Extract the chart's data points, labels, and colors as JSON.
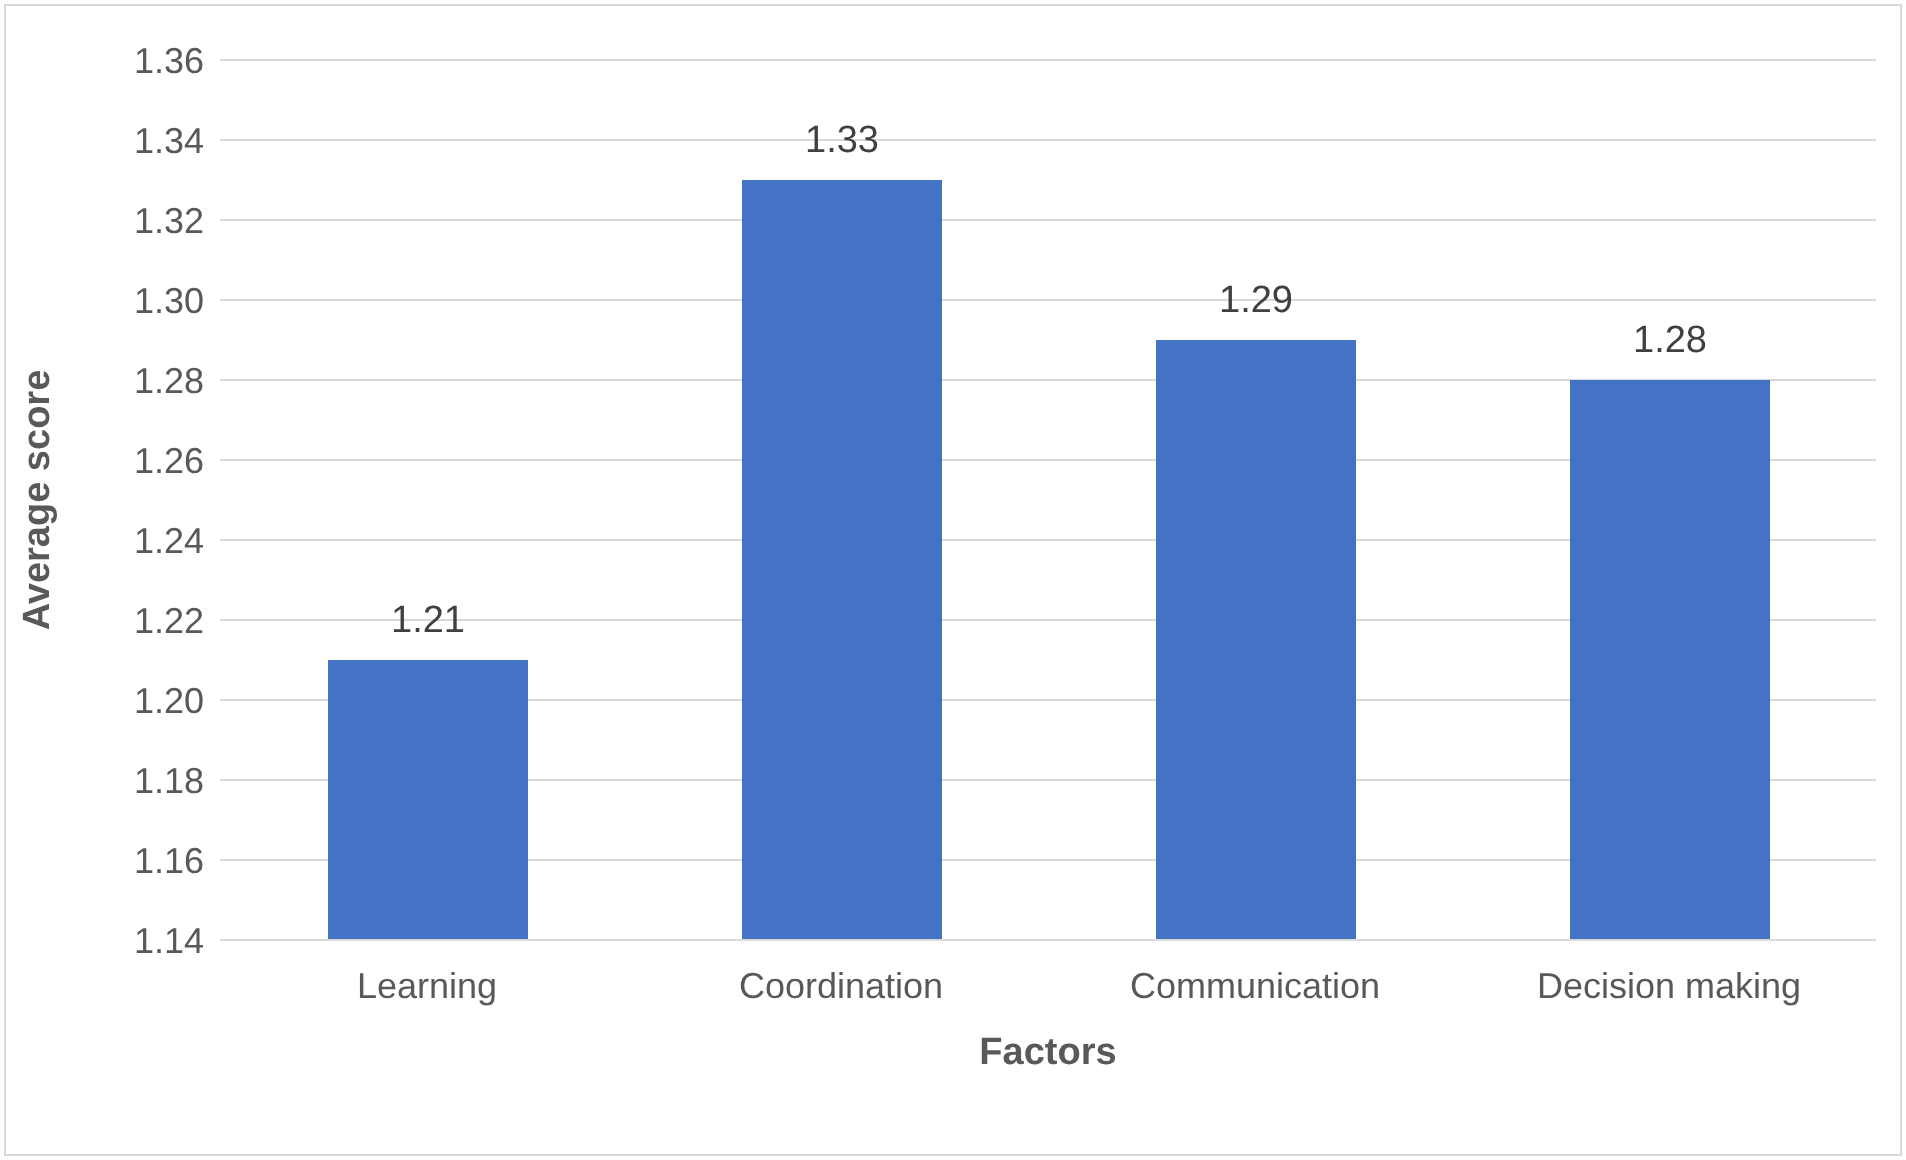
{
  "chart_data": {
    "type": "bar",
    "xlabel": "Factors",
    "ylabel": "Average score",
    "categories": [
      "Learning",
      "Coordination",
      "Communication",
      "Decision making"
    ],
    "values": [
      1.21,
      1.33,
      1.29,
      1.28
    ],
    "color": "#4472c4",
    "ylim": [
      1.14,
      1.36
    ],
    "yticks": [
      1.14,
      1.16,
      1.18,
      {
        "value": 1.2,
        "label": "1.20"
      },
      1.22,
      1.24,
      1.26,
      1.28,
      {
        "value": 1.3,
        "label": "1.30"
      },
      1.32,
      1.34,
      1.36
    ],
    "grid": "y",
    "data_labels": true
  }
}
